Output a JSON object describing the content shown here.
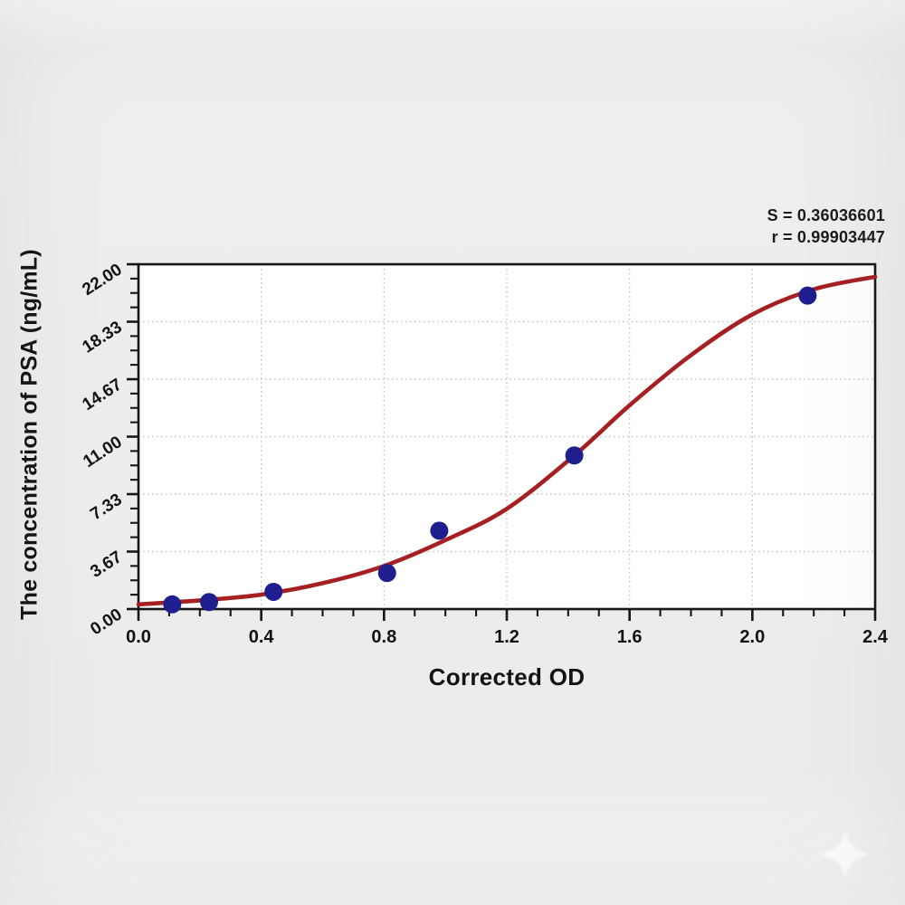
{
  "chart_data": {
    "type": "scatter",
    "title": "",
    "xlabel": "Corrected OD",
    "ylabel": "The concentration of PSA (ng/mL)",
    "xlim": [
      0,
      2.4
    ],
    "ylim": [
      0,
      22
    ],
    "grid": true,
    "grid_style": "dotted",
    "x_ticks": {
      "values": [
        0,
        0.4,
        0.8,
        1.2,
        1.6,
        2.0,
        2.4
      ],
      "labels": [
        "0.0",
        "0.4",
        "0.8",
        "1.2",
        "1.6",
        "2.0",
        "2.4"
      ],
      "minor_step": 0.1
    },
    "y_ticks": {
      "values": [
        0,
        3.6667,
        7.3333,
        11,
        14.6667,
        18.3333,
        22
      ],
      "labels": [
        "0.00",
        "3.67",
        "7.33",
        "11.00",
        "14.67",
        "18.33",
        "22.00"
      ],
      "minor_divisions": 4
    },
    "annotation": {
      "s_label": "S = 0.36036601",
      "r_label": "r = 0.99903447"
    },
    "series": [
      {
        "name": "standard-points",
        "type": "scatter",
        "color": "#1e1e8f",
        "points": [
          [
            0.11,
            0.3
          ],
          [
            0.23,
            0.45
          ],
          [
            0.44,
            1.1
          ],
          [
            0.81,
            2.3
          ],
          [
            0.98,
            5.0
          ],
          [
            1.42,
            9.8
          ],
          [
            2.18,
            20.0
          ]
        ]
      },
      {
        "name": "fitted-curve",
        "type": "line",
        "color": "#a62022",
        "points": [
          [
            0,
            0.3
          ],
          [
            0.2,
            0.55
          ],
          [
            0.4,
            0.92
          ],
          [
            0.6,
            1.65
          ],
          [
            0.8,
            2.75
          ],
          [
            1.0,
            4.4
          ],
          [
            1.2,
            6.4
          ],
          [
            1.42,
            9.8
          ],
          [
            1.6,
            13.0
          ],
          [
            1.8,
            16.2
          ],
          [
            2.0,
            18.8
          ],
          [
            2.2,
            20.4
          ],
          [
            2.4,
            21.2
          ]
        ]
      }
    ],
    "colors": {
      "axis": "#161616",
      "grid": "#c6c6c6",
      "plot_bg": "#ffffff",
      "page_bg": "#eeedeb",
      "curve": "#a62022",
      "points": "#1e1e8f"
    }
  }
}
